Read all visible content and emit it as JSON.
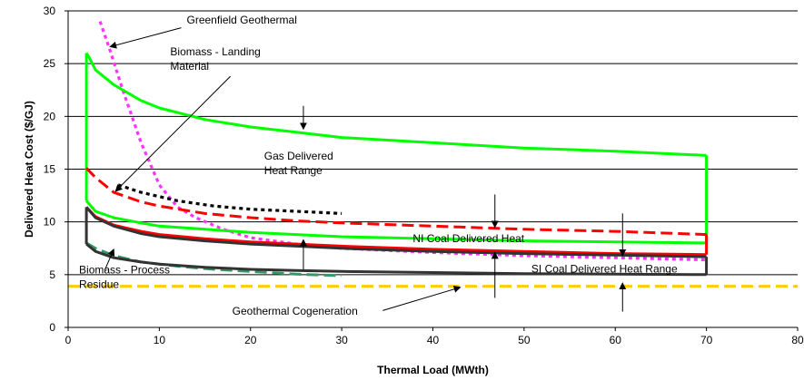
{
  "chart_data": {
    "type": "line",
    "title": "",
    "xlabel": "Thermal Load (MWth)",
    "ylabel": "Delivered Heat Cost ($/GJ)",
    "xlim": [
      0,
      80
    ],
    "ylim": [
      0,
      30
    ],
    "x_ticks": [
      "0",
      "10",
      "20",
      "30",
      "40",
      "50",
      "60",
      "70",
      "80"
    ],
    "y_ticks": [
      "0",
      "5",
      "10",
      "15",
      "20",
      "25",
      "30"
    ],
    "grid": "horizontal",
    "legend": "none",
    "series": [
      {
        "key": "greenfield_geothermal",
        "color": "#ff33ff",
        "dash": "dot",
        "points": [
          [
            3.5,
            29
          ],
          [
            4.5,
            26.5
          ],
          [
            6,
            22.5
          ],
          [
            8,
            17.5
          ],
          [
            10,
            13.5
          ],
          [
            12,
            11.4
          ],
          [
            14,
            10.4
          ],
          [
            17,
            9.3
          ],
          [
            20,
            8.5
          ],
          [
            25,
            7.9
          ],
          [
            30,
            7.5
          ],
          [
            40,
            7.1
          ],
          [
            50,
            6.8
          ],
          [
            60,
            6.6
          ],
          [
            70,
            6.4
          ]
        ]
      },
      {
        "key": "biomass_landing",
        "color": "#000000",
        "dash": "dot",
        "points": [
          [
            5.5,
            13.5
          ],
          [
            8,
            12.8
          ],
          [
            12,
            12
          ],
          [
            16,
            11.5
          ],
          [
            20,
            11.2
          ],
          [
            25,
            11
          ],
          [
            30,
            10.8
          ]
        ]
      },
      {
        "key": "biomass_process_residue",
        "color": "#339966",
        "dash": "dash",
        "points": [
          [
            2,
            8
          ],
          [
            3,
            7.5
          ],
          [
            5,
            6.8
          ],
          [
            8,
            6.2
          ],
          [
            12,
            5.8
          ],
          [
            16,
            5.5
          ],
          [
            20,
            5.3
          ],
          [
            25,
            5.05
          ],
          [
            30,
            4.9
          ]
        ]
      },
      {
        "key": "geothermal_cogeneration",
        "color": "#ffcc00",
        "dash": "dash",
        "points": [
          [
            0,
            3.9
          ],
          [
            80,
            3.9
          ]
        ]
      },
      {
        "key": "gas_upper",
        "color": "#00ff00",
        "dash": "solid",
        "points": [
          [
            2,
            26
          ],
          [
            2.3,
            25.6
          ],
          [
            3,
            24.4
          ],
          [
            5,
            23
          ],
          [
            8,
            21.5
          ],
          [
            10,
            20.8
          ],
          [
            15,
            19.7
          ],
          [
            20,
            19
          ],
          [
            25,
            18.5
          ],
          [
            30,
            18
          ],
          [
            40,
            17.5
          ],
          [
            50,
            17
          ],
          [
            60,
            16.7
          ],
          [
            70,
            16.3
          ]
        ]
      },
      {
        "key": "gas_lower",
        "color": "#00ff00",
        "dash": "solid",
        "points": [
          [
            2,
            12
          ],
          [
            3,
            11
          ],
          [
            5,
            10.4
          ],
          [
            8,
            9.9
          ],
          [
            10,
            9.6
          ],
          [
            15,
            9.3
          ],
          [
            20,
            9
          ],
          [
            25,
            8.8
          ],
          [
            30,
            8.6
          ],
          [
            40,
            8.4
          ],
          [
            50,
            8.2
          ],
          [
            60,
            8.1
          ],
          [
            70,
            8
          ]
        ]
      },
      {
        "key": "gas_left_edge",
        "color": "#00ff00",
        "dash": "solid",
        "points": [
          [
            2,
            12
          ],
          [
            2,
            26
          ]
        ]
      },
      {
        "key": "gas_right_edge",
        "color": "#00ff00",
        "dash": "solid",
        "points": [
          [
            70,
            8
          ],
          [
            70,
            16.3
          ]
        ]
      },
      {
        "key": "ni_coal_upper",
        "color": "#ff0000",
        "dash": "dash",
        "points": [
          [
            2,
            15.1
          ],
          [
            3,
            14.2
          ],
          [
            5,
            12.8
          ],
          [
            8,
            11.9
          ],
          [
            10,
            11.5
          ],
          [
            15,
            10.8
          ],
          [
            20,
            10.4
          ],
          [
            25,
            10.1
          ],
          [
            30,
            9.9
          ],
          [
            40,
            9.6
          ],
          [
            50,
            9.3
          ],
          [
            60,
            9.1
          ],
          [
            70,
            8.8
          ]
        ]
      },
      {
        "key": "ni_coal_lower",
        "color": "#ff0000",
        "dash": "solid",
        "points": [
          [
            2,
            11.4
          ],
          [
            3,
            10.5
          ],
          [
            5,
            9.7
          ],
          [
            8,
            9.1
          ],
          [
            10,
            8.8
          ],
          [
            15,
            8.4
          ],
          [
            20,
            8.1
          ],
          [
            25,
            7.9
          ],
          [
            30,
            7.7
          ],
          [
            40,
            7.4
          ],
          [
            50,
            7.2
          ],
          [
            60,
            7
          ],
          [
            70,
            6.9
          ]
        ]
      },
      {
        "key": "ni_coal_right_edge",
        "color": "#ff0000",
        "dash": "solid",
        "points": [
          [
            70,
            6.9
          ],
          [
            70,
            8.8
          ]
        ]
      },
      {
        "key": "si_coal_upper",
        "color": "#333333",
        "dash": "solid",
        "points": [
          [
            2,
            11.4
          ],
          [
            3,
            10.4
          ],
          [
            5,
            9.6
          ],
          [
            8,
            8.9
          ],
          [
            10,
            8.6
          ],
          [
            15,
            8.2
          ],
          [
            20,
            7.9
          ],
          [
            25,
            7.7
          ],
          [
            30,
            7.5
          ],
          [
            40,
            7.2
          ],
          [
            50,
            7
          ],
          [
            60,
            6.85
          ],
          [
            70,
            6.7
          ]
        ]
      },
      {
        "key": "si_coal_lower",
        "color": "#333333",
        "dash": "solid",
        "points": [
          [
            2,
            7.9
          ],
          [
            3,
            7.2
          ],
          [
            5,
            6.6
          ],
          [
            8,
            6.2
          ],
          [
            10,
            6
          ],
          [
            15,
            5.7
          ],
          [
            20,
            5.5
          ],
          [
            25,
            5.4
          ],
          [
            30,
            5.3
          ],
          [
            40,
            5.2
          ],
          [
            50,
            5.1
          ],
          [
            60,
            5.05
          ],
          [
            70,
            5
          ]
        ]
      },
      {
        "key": "si_coal_left_edge",
        "color": "#333333",
        "dash": "solid",
        "points": [
          [
            2,
            7.9
          ],
          [
            2,
            11.4
          ]
        ]
      },
      {
        "key": "si_coal_right_edge",
        "color": "#333333",
        "dash": "solid",
        "points": [
          [
            70,
            5
          ],
          [
            70,
            6.7
          ]
        ]
      }
    ],
    "annotations": [
      {
        "key": "greenfield",
        "lines": [
          "Greenfield Geothermal"
        ],
        "at": [
          13,
          28.8
        ],
        "arrow_from": [
          12.4,
          28.4
        ],
        "arrow_to": [
          4.6,
          26.6
        ]
      },
      {
        "key": "biomass_landing",
        "lines": [
          "Biomass - Landing",
          "Material"
        ],
        "at": [
          11.2,
          25.8
        ],
        "arrow_from": [
          17.8,
          23.8
        ],
        "arrow_to": [
          5.2,
          12.9
        ]
      },
      {
        "key": "gas_range",
        "lines": [
          "Gas Delivered",
          "Heat Range"
        ],
        "at": [
          21.5,
          15.9
        ],
        "arrow_from": null,
        "arrow_to": null
      },
      {
        "key": "ni_coal",
        "lines": [
          "NI Coal Delivered Heat"
        ],
        "at": [
          37.8,
          8.1
        ],
        "arrow_from": null,
        "arrow_to": null
      },
      {
        "key": "si_coal",
        "lines": [
          "SI Coal Delivered Heat Range"
        ],
        "at": [
          50.8,
          5.2
        ],
        "arrow_from": null,
        "arrow_to": null
      },
      {
        "key": "biomass_process",
        "lines": [
          "Biomass - Process",
          "Residue"
        ],
        "at": [
          1.2,
          5.1
        ],
        "arrow_from": [
          4,
          5.4
        ],
        "arrow_to": [
          5,
          7.4
        ]
      },
      {
        "key": "geo_cogen",
        "lines": [
          "Geothermal Cogeneration"
        ],
        "at": [
          18,
          1.2
        ],
        "arrow_from": [
          34.5,
          1.6
        ],
        "arrow_to": [
          43,
          3.8
        ]
      }
    ],
    "range_arrows": [
      {
        "x": 25.8,
        "from": 21,
        "to": 18.8
      },
      {
        "x": 25.8,
        "from": 5.5,
        "to": 8.3
      },
      {
        "x": 46.8,
        "from": 12.6,
        "to": 9.5
      },
      {
        "x": 46.8,
        "from": 2.8,
        "to": 7.1
      },
      {
        "x": 60.8,
        "from": 10.8,
        "to": 6.8
      },
      {
        "x": 60.8,
        "from": 1.5,
        "to": 4.2
      }
    ]
  }
}
